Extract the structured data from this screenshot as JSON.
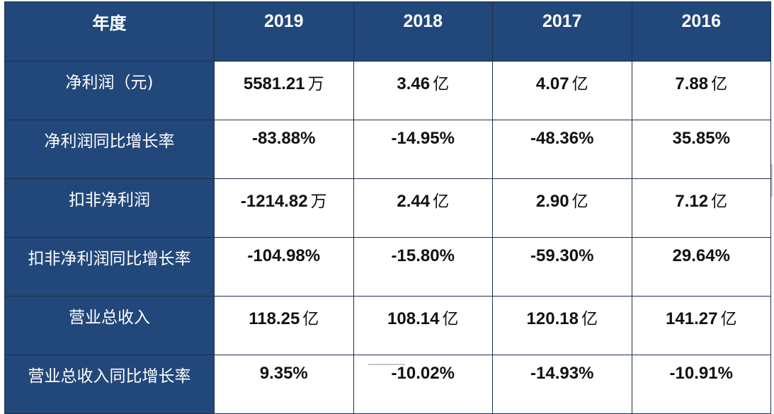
{
  "header": {
    "label": "年度",
    "years": [
      "2019",
      "2018",
      "2017",
      "2016"
    ]
  },
  "rows": [
    {
      "label": "净利润（元)",
      "cells": [
        {
          "num": "5581.21",
          "unit": "万"
        },
        {
          "num": "3.46",
          "unit": "亿"
        },
        {
          "num": "4.07",
          "unit": "亿"
        },
        {
          "num": "7.88",
          "unit": "亿"
        }
      ]
    },
    {
      "label": "净利润同比增长率",
      "cells": [
        {
          "num": "-83.88%",
          "unit": ""
        },
        {
          "num": "-14.95%",
          "unit": ""
        },
        {
          "num": "-48.36%",
          "unit": ""
        },
        {
          "num": "35.85%",
          "unit": ""
        }
      ]
    },
    {
      "label": "扣非净利润",
      "cells": [
        {
          "num": "-1214.82",
          "unit": "万"
        },
        {
          "num": "2.44",
          "unit": "亿"
        },
        {
          "num": "2.90",
          "unit": "亿"
        },
        {
          "num": "7.12",
          "unit": "亿"
        }
      ]
    },
    {
      "label": "扣非净利润同比增长率",
      "cells": [
        {
          "num": "-104.98%",
          "unit": ""
        },
        {
          "num": "-15.80%",
          "unit": ""
        },
        {
          "num": "-59.30%",
          "unit": ""
        },
        {
          "num": "29.64%",
          "unit": ""
        }
      ]
    },
    {
      "label": "营业总收入",
      "cells": [
        {
          "num": "118.25",
          "unit": "亿"
        },
        {
          "num": "108.14",
          "unit": "亿"
        },
        {
          "num": "120.18",
          "unit": "亿"
        },
        {
          "num": "141.27",
          "unit": "亿"
        }
      ]
    },
    {
      "label": "营业总收入同比增长率",
      "cells": [
        {
          "num": "9.35%",
          "unit": ""
        },
        {
          "num": "-10.02%",
          "unit": ""
        },
        {
          "num": "-14.93%",
          "unit": ""
        },
        {
          "num": "-10.91%",
          "unit": ""
        }
      ]
    }
  ],
  "colors": {
    "header_bg": "#22477a",
    "header_text": "#ffffff",
    "body_bg": "#ffffff",
    "body_text": "#111111"
  }
}
